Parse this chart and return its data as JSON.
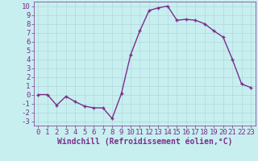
{
  "x": [
    0,
    1,
    2,
    3,
    4,
    5,
    6,
    7,
    8,
    9,
    10,
    11,
    12,
    13,
    14,
    15,
    16,
    17,
    18,
    19,
    20,
    21,
    22,
    23
  ],
  "y": [
    0,
    0,
    -1.2,
    -0.2,
    -0.8,
    -1.3,
    -1.5,
    -1.5,
    -2.7,
    0.1,
    4.5,
    7.2,
    9.5,
    9.8,
    10.0,
    8.4,
    8.5,
    8.4,
    8.0,
    7.2,
    6.5,
    4.0,
    1.2,
    0.8
  ],
  "line_color": "#7b2d8b",
  "marker_color": "#7b2d8b",
  "background_color": "#c8eff0",
  "grid_color": "#b0d8da",
  "xlabel": "Windchill (Refroidissement éolien,°C)",
  "xlim": [
    -0.5,
    23.5
  ],
  "ylim": [
    -3.5,
    10.5
  ],
  "yticks": [
    -3,
    -2,
    -1,
    0,
    1,
    2,
    3,
    4,
    5,
    6,
    7,
    8,
    9,
    10
  ],
  "xticks": [
    0,
    1,
    2,
    3,
    4,
    5,
    6,
    7,
    8,
    9,
    10,
    11,
    12,
    13,
    14,
    15,
    16,
    17,
    18,
    19,
    20,
    21,
    22,
    23
  ],
  "line_width": 1.0,
  "marker_size": 2.5,
  "font_size": 6.5
}
